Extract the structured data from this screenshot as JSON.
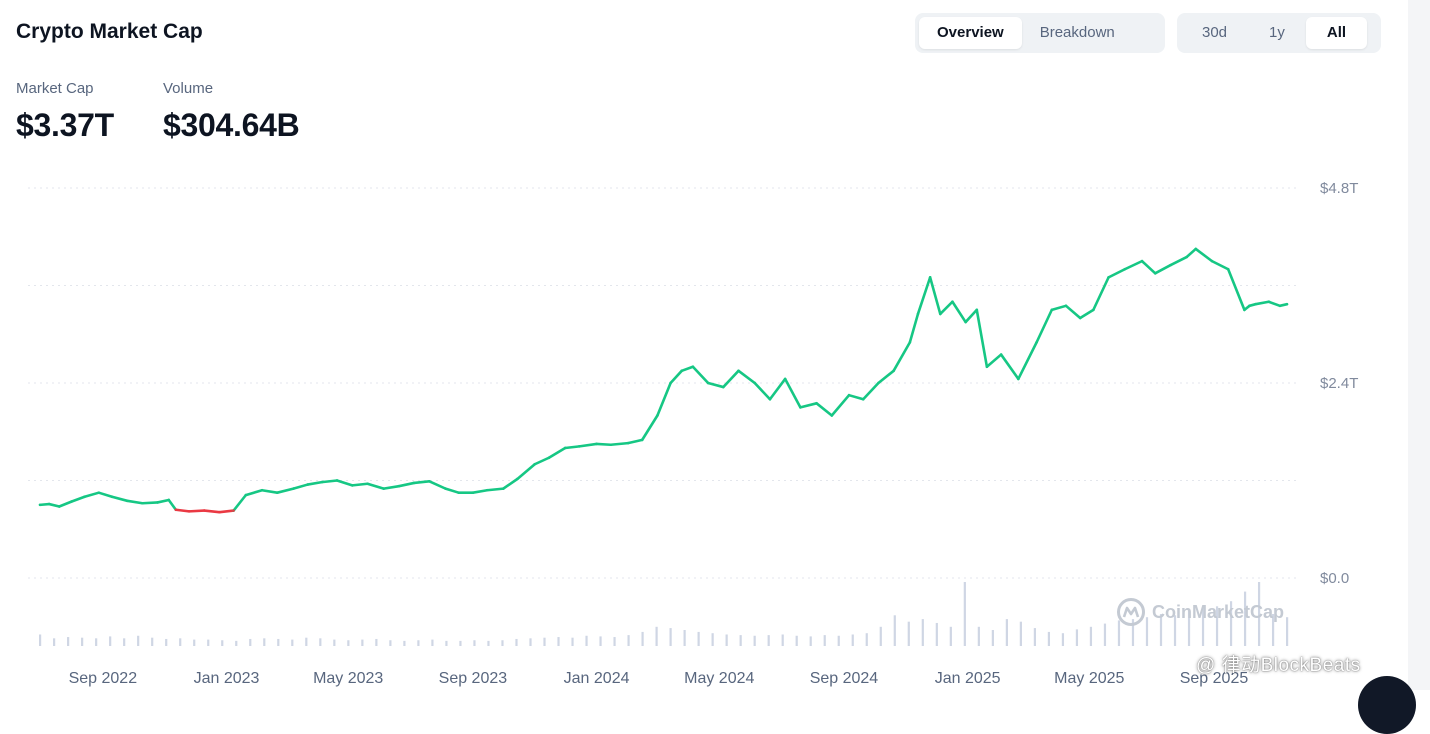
{
  "header": {
    "title": "Crypto Market Cap",
    "view_tabs": [
      {
        "label": "Overview",
        "active": true
      },
      {
        "label": "Breakdown",
        "active": false
      }
    ],
    "range_tabs": [
      {
        "label": "30d",
        "active": false
      },
      {
        "label": "1y",
        "active": false
      },
      {
        "label": "All",
        "active": true
      }
    ]
  },
  "stats": {
    "market_cap": {
      "label": "Market Cap",
      "value": "$3.37T"
    },
    "volume": {
      "label": "Volume",
      "value": "$304.64B"
    }
  },
  "watermarks": {
    "brand": "CoinMarketCap",
    "source": "@ 律动BlockBeats"
  },
  "colors": {
    "up": "#16c784",
    "down": "#ea3943",
    "volume_bar": "#cfd6e4",
    "grid": "#e3e6ec",
    "axis_text": "#808a9d",
    "text": "#0d1421",
    "muted": "#58667e",
    "bg": "#ffffff"
  },
  "chart_data": {
    "type": "line",
    "title": "Crypto Market Cap",
    "x_tick_labels": [
      "Sep 2022",
      "Jan 2023",
      "May 2023",
      "Sep 2023",
      "Jan 2024",
      "May 2024",
      "Sep 2024",
      "Jan 2025",
      "May 2025",
      "Sep 2025"
    ],
    "y_tick_labels": [
      "$4.8T",
      "$2.4T",
      "$0.0"
    ],
    "ylim": [
      0,
      4.8
    ],
    "grid": true,
    "legend": "none",
    "baseline": 0.87,
    "series": [
      {
        "name": "Market Cap",
        "unit": "T USD",
        "x": [
          "2022-07-01",
          "2022-07-10",
          "2022-07-20",
          "2022-08-01",
          "2022-08-14",
          "2022-08-28",
          "2022-09-10",
          "2022-09-25",
          "2022-10-10",
          "2022-10-25",
          "2022-11-05",
          "2022-11-12",
          "2022-11-25",
          "2022-12-10",
          "2022-12-25",
          "2023-01-08",
          "2023-01-20",
          "2023-02-05",
          "2023-02-20",
          "2023-03-08",
          "2023-03-22",
          "2023-04-05",
          "2023-04-20",
          "2023-05-05",
          "2023-05-20",
          "2023-06-05",
          "2023-06-20",
          "2023-07-05",
          "2023-07-20",
          "2023-08-05",
          "2023-08-18",
          "2023-09-01",
          "2023-09-15",
          "2023-10-01",
          "2023-10-15",
          "2023-11-01",
          "2023-11-15",
          "2023-12-01",
          "2023-12-15",
          "2024-01-01",
          "2024-01-15",
          "2024-02-01",
          "2024-02-15",
          "2024-03-01",
          "2024-03-14",
          "2024-03-25",
          "2024-04-05",
          "2024-04-20",
          "2024-05-05",
          "2024-05-20",
          "2024-06-05",
          "2024-06-20",
          "2024-07-05",
          "2024-07-20",
          "2024-08-05",
          "2024-08-20",
          "2024-09-06",
          "2024-09-20",
          "2024-10-05",
          "2024-10-20",
          "2024-11-05",
          "2024-11-13",
          "2024-11-25",
          "2024-12-05",
          "2024-12-17",
          "2024-12-30",
          "2025-01-10",
          "2025-01-20",
          "2025-02-03",
          "2025-02-20",
          "2025-03-10",
          "2025-03-25",
          "2025-04-08",
          "2025-04-22",
          "2025-05-05",
          "2025-05-20",
          "2025-06-05",
          "2025-06-22",
          "2025-07-05",
          "2025-07-20",
          "2025-08-05",
          "2025-08-14",
          "2025-08-30",
          "2025-09-15",
          "2025-10-01",
          "2025-10-06",
          "2025-10-12",
          "2025-10-25",
          "2025-11-05",
          "2025-11-12"
        ],
        "values": [
          0.9,
          0.91,
          0.88,
          0.94,
          1.0,
          1.05,
          1.0,
          0.95,
          0.92,
          0.93,
          0.96,
          0.84,
          0.82,
          0.83,
          0.81,
          0.83,
          1.02,
          1.08,
          1.05,
          1.1,
          1.15,
          1.18,
          1.2,
          1.14,
          1.16,
          1.1,
          1.13,
          1.17,
          1.19,
          1.1,
          1.05,
          1.05,
          1.08,
          1.1,
          1.22,
          1.4,
          1.48,
          1.6,
          1.62,
          1.65,
          1.64,
          1.66,
          1.7,
          2.0,
          2.4,
          2.55,
          2.6,
          2.4,
          2.35,
          2.55,
          2.4,
          2.2,
          2.45,
          2.1,
          2.15,
          2.0,
          2.25,
          2.2,
          2.4,
          2.55,
          2.9,
          3.25,
          3.7,
          3.25,
          3.4,
          3.15,
          3.3,
          2.6,
          2.75,
          2.45,
          2.9,
          3.3,
          3.35,
          3.2,
          3.3,
          3.7,
          3.8,
          3.9,
          3.75,
          3.85,
          3.95,
          4.05,
          3.9,
          3.8,
          3.3,
          3.35,
          3.37,
          3.4,
          3.35,
          3.37
        ]
      }
    ],
    "volume_bars": {
      "unit": "relative",
      "values": [
        0.18,
        0.12,
        0.14,
        0.13,
        0.12,
        0.15,
        0.12,
        0.16,
        0.13,
        0.11,
        0.12,
        0.1,
        0.1,
        0.09,
        0.08,
        0.11,
        0.12,
        0.11,
        0.1,
        0.13,
        0.12,
        0.1,
        0.09,
        0.1,
        0.11,
        0.09,
        0.08,
        0.09,
        0.1,
        0.08,
        0.08,
        0.09,
        0.08,
        0.09,
        0.11,
        0.12,
        0.13,
        0.14,
        0.13,
        0.16,
        0.15,
        0.14,
        0.17,
        0.22,
        0.3,
        0.28,
        0.25,
        0.22,
        0.2,
        0.18,
        0.17,
        0.16,
        0.17,
        0.18,
        0.16,
        0.15,
        0.17,
        0.16,
        0.18,
        0.2,
        0.3,
        0.48,
        0.38,
        0.42,
        0.36,
        0.3,
        1.0,
        0.3,
        0.25,
        0.42,
        0.38,
        0.28,
        0.22,
        0.2,
        0.26,
        0.3,
        0.35,
        0.4,
        0.42,
        0.45,
        0.5,
        0.48,
        0.55,
        0.6,
        0.62,
        0.7,
        0.85,
        1.0,
        0.5,
        0.45
      ]
    }
  }
}
